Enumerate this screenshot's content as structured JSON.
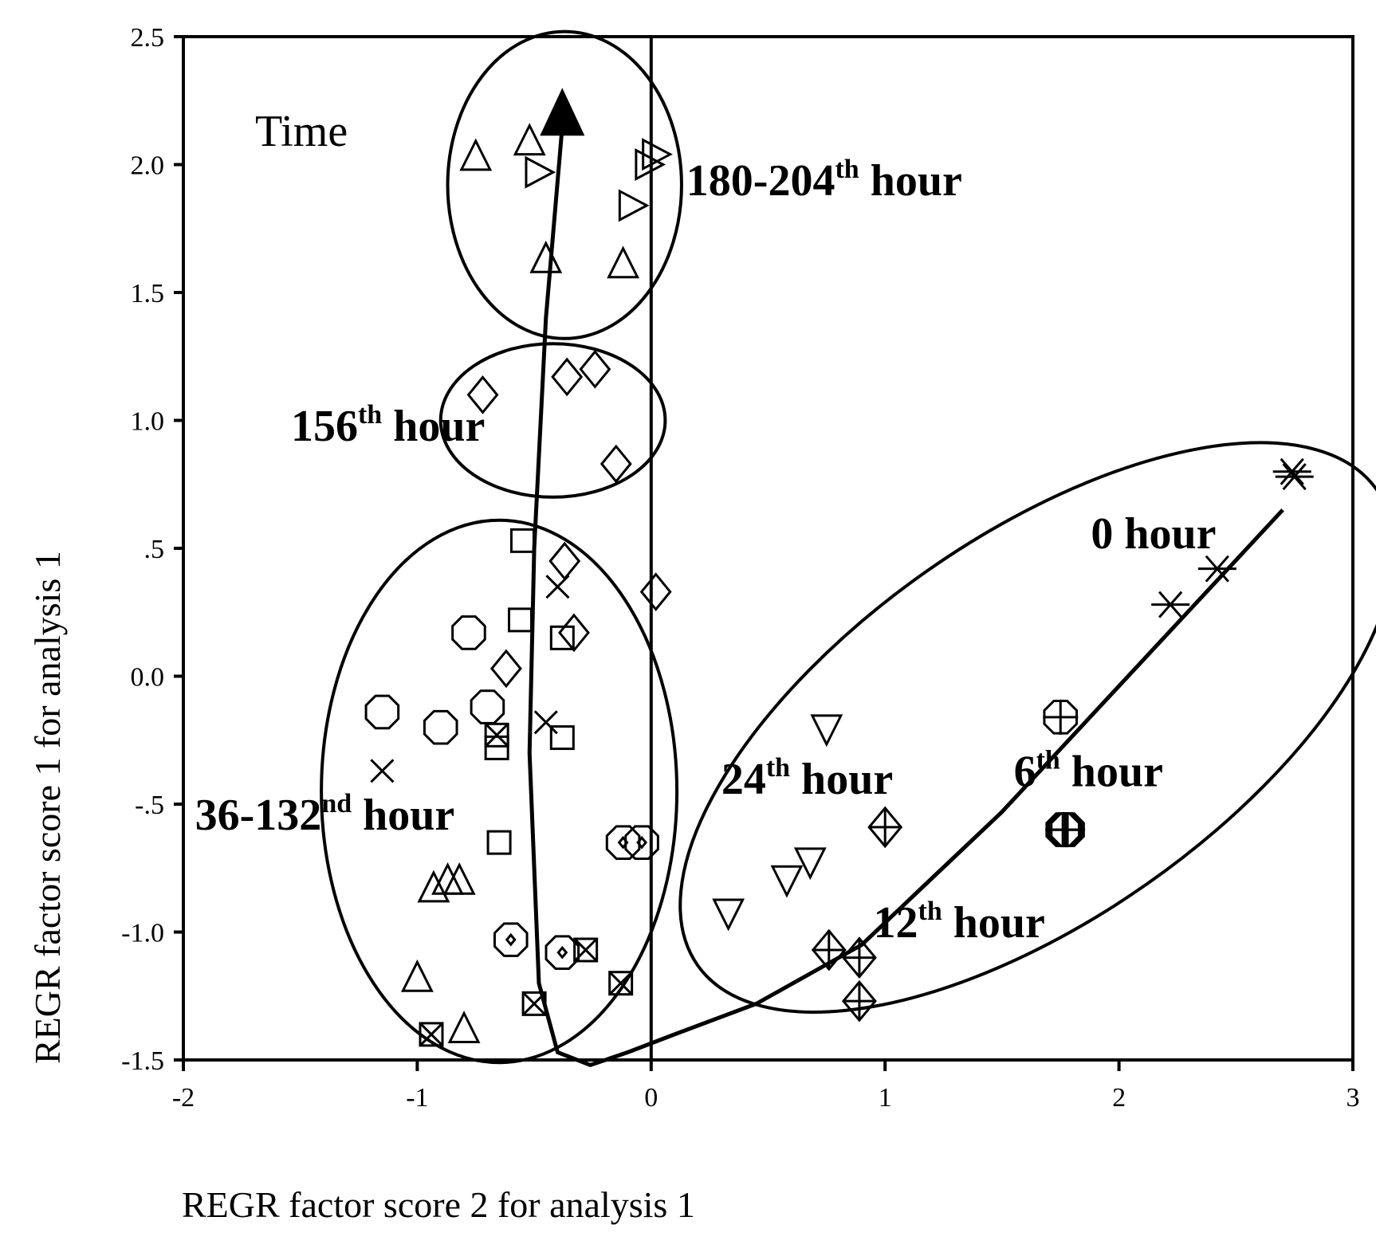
{
  "chart_data": {
    "type": "scatter",
    "xlabel": "REGR factor score 2 for analysis 1",
    "ylabel": "REGR factor score 1 for analysis 1",
    "xlim": [
      -2,
      3
    ],
    "ylim": [
      -1.5,
      2.5
    ],
    "xticks": [
      "-2",
      "-1",
      "0",
      "1",
      "2",
      "3"
    ],
    "yticks": [
      "2.5",
      "2.0",
      "1.5",
      "1.0",
      ".5",
      "0.0",
      "-.5",
      "-1.0",
      "-1.5"
    ],
    "grid": false,
    "trajectory_label": "Time",
    "groups": [
      {
        "label": "0 hour",
        "sup": "",
        "tail": ""
      },
      {
        "label": "6",
        "sup": "th",
        "tail": " hour"
      },
      {
        "label": "12",
        "sup": "th",
        "tail": " hour"
      },
      {
        "label": "24",
        "sup": "th",
        "tail": " hour"
      },
      {
        "label": "36-132",
        "sup": "nd",
        "tail": " hour"
      },
      {
        "label": "156",
        "sup": "th",
        "tail": " hour"
      },
      {
        "label": "180-204",
        "sup": "th",
        "tail": " hour"
      }
    ],
    "series": [
      {
        "group": "0 hour",
        "marker": "asterisk",
        "points": [
          [
            2.75,
            0.78
          ],
          [
            2.74,
            0.8
          ],
          [
            2.42,
            0.42
          ],
          [
            2.22,
            0.28
          ]
        ]
      },
      {
        "group": "6th hour",
        "marker": "circle-plus",
        "points": [
          [
            1.75,
            -0.16
          ],
          [
            1.76,
            -0.6
          ],
          [
            1.77,
            -0.6
          ],
          [
            1.78,
            -0.6
          ]
        ]
      },
      {
        "group": "12th hour",
        "marker": "diamond-plus",
        "points": [
          [
            1.0,
            -0.59
          ],
          [
            0.76,
            -1.07
          ],
          [
            0.89,
            -1.1
          ],
          [
            0.89,
            -1.27
          ]
        ]
      },
      {
        "group": "24th hour",
        "marker": "triangle-down",
        "points": [
          [
            0.75,
            -0.21
          ],
          [
            0.68,
            -0.73
          ],
          [
            0.58,
            -0.8
          ],
          [
            0.33,
            -0.93
          ]
        ]
      },
      {
        "group": "36-132nd hour",
        "marker": "square",
        "points": [
          [
            -0.55,
            0.53
          ],
          [
            -0.56,
            0.22
          ],
          [
            -0.38,
            0.15
          ],
          [
            -0.66,
            -0.28
          ],
          [
            -0.38,
            -0.24
          ],
          [
            -0.65,
            -0.65
          ]
        ]
      },
      {
        "group": "36-132nd hour",
        "marker": "square-x",
        "points": [
          [
            -0.66,
            -0.23
          ],
          [
            -0.28,
            -1.07
          ],
          [
            -0.13,
            -1.2
          ],
          [
            -0.5,
            -1.28
          ],
          [
            -0.94,
            -1.4
          ]
        ]
      },
      {
        "group": "36-132nd hour",
        "marker": "octagon",
        "points": [
          [
            -0.78,
            0.17
          ],
          [
            -1.15,
            -0.14
          ],
          [
            -0.9,
            -0.2
          ],
          [
            -0.7,
            -0.12
          ]
        ]
      },
      {
        "group": "36-132nd hour",
        "marker": "octagon-dot",
        "points": [
          [
            -0.12,
            -0.65
          ],
          [
            -0.04,
            -0.65
          ],
          [
            -0.6,
            -1.03
          ],
          [
            -0.38,
            -1.08
          ]
        ]
      },
      {
        "group": "36-132nd hour",
        "marker": "x",
        "points": [
          [
            -0.4,
            0.35
          ],
          [
            -0.45,
            -0.18
          ],
          [
            -1.15,
            -0.37
          ]
        ]
      },
      {
        "group": "36-132nd hour",
        "marker": "diamond",
        "points": [
          [
            -0.37,
            0.45
          ],
          [
            -0.33,
            0.17
          ],
          [
            -0.62,
            0.03
          ],
          [
            0.02,
            0.33
          ]
        ]
      },
      {
        "group": "36-132nd hour",
        "marker": "triangle-up",
        "points": [
          [
            -0.93,
            -0.83
          ],
          [
            -0.87,
            -0.8
          ],
          [
            -0.82,
            -0.8
          ],
          [
            -1.0,
            -1.18
          ],
          [
            -0.8,
            -1.38
          ]
        ]
      },
      {
        "group": "156th hour",
        "marker": "diamond",
        "points": [
          [
            -0.72,
            1.1
          ],
          [
            -0.36,
            1.17
          ],
          [
            -0.24,
            1.2
          ],
          [
            -0.15,
            0.83
          ]
        ]
      },
      {
        "group": "180-204th hour",
        "marker": "triangle-up",
        "points": [
          [
            -0.75,
            2.03
          ],
          [
            -0.52,
            2.09
          ],
          [
            -0.45,
            1.63
          ],
          [
            -0.12,
            1.61
          ]
        ]
      },
      {
        "group": "180-204th hour",
        "marker": "triangle-right",
        "points": [
          [
            -0.48,
            1.97
          ],
          [
            -0.08,
            1.84
          ],
          [
            0.02,
            2.04
          ],
          [
            -0.01,
            2.0
          ]
        ]
      }
    ]
  }
}
